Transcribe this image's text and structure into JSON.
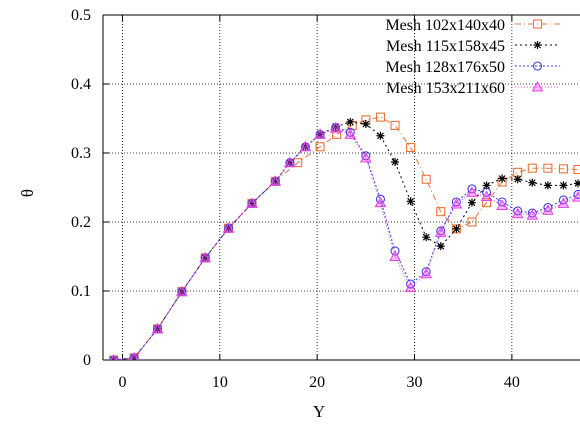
{
  "chart_data": {
    "type": "line",
    "xlabel": "Y",
    "ylabel": "θ",
    "xlim": [
      -2,
      47
    ],
    "ylim": [
      0,
      0.5
    ],
    "grid": true,
    "legend_position": "top-right",
    "x_ticks": [
      0,
      10,
      20,
      30,
      40
    ],
    "y_ticks": [
      0,
      0.1,
      0.2,
      0.3,
      0.4,
      0.5
    ],
    "x_tick_labels": [
      "0",
      "10",
      "20",
      "30",
      "40"
    ],
    "y_tick_labels": [
      "0",
      "0.1",
      "0.2",
      "0.3",
      "0.4",
      "0.5"
    ],
    "series": [
      {
        "name": "Mesh 102x140x40",
        "color": "#e8743b",
        "marker": "square",
        "dash": "6,3,1,3",
        "x": [
          -0.9,
          1.2,
          3.6,
          6.1,
          8.5,
          10.9,
          13.3,
          15.7,
          18.0,
          20.3,
          22.0,
          23.6,
          25.0,
          26.5,
          28.0,
          29.6,
          31.2,
          32.7,
          34.3,
          35.9,
          37.4,
          39.0,
          40.6,
          42.1,
          43.7,
          45.3,
          46.8,
          47.6
        ],
        "y": [
          0.0,
          0.003,
          0.045,
          0.099,
          0.148,
          0.191,
          0.227,
          0.259,
          0.286,
          0.309,
          0.327,
          0.34,
          0.348,
          0.352,
          0.34,
          0.308,
          0.262,
          0.215,
          0.19,
          0.2,
          0.228,
          0.258,
          0.272,
          0.278,
          0.278,
          0.277,
          0.276,
          0.277
        ]
      },
      {
        "name": "Mesh 115x158x45",
        "color": "#000000",
        "marker": "star",
        "dash": "2,3",
        "x": [
          -0.9,
          1.2,
          3.6,
          6.1,
          8.5,
          10.9,
          13.3,
          15.7,
          17.2,
          18.8,
          20.3,
          21.9,
          23.4,
          25.0,
          26.5,
          28.0,
          29.6,
          31.2,
          32.7,
          34.3,
          35.9,
          37.4,
          39.0,
          40.6,
          42.1,
          43.7,
          45.3,
          46.8
        ],
        "y": [
          0.0,
          0.003,
          0.045,
          0.099,
          0.148,
          0.191,
          0.227,
          0.259,
          0.286,
          0.309,
          0.327,
          0.338,
          0.345,
          0.342,
          0.325,
          0.287,
          0.23,
          0.178,
          0.165,
          0.19,
          0.228,
          0.253,
          0.263,
          0.262,
          0.257,
          0.253,
          0.253,
          0.256
        ]
      },
      {
        "name": "Mesh 128x176x50",
        "color": "#3f3fdf",
        "marker": "circle",
        "dash": "2,2",
        "x": [
          -0.9,
          1.2,
          3.6,
          6.1,
          8.5,
          10.9,
          13.3,
          15.7,
          17.2,
          18.8,
          20.3,
          21.9,
          23.4,
          25.0,
          26.5,
          28.0,
          29.6,
          31.2,
          32.7,
          34.3,
          35.9,
          37.4,
          39.0,
          40.6,
          42.1,
          43.7,
          45.3,
          46.8
        ],
        "y": [
          0.0,
          0.003,
          0.045,
          0.099,
          0.148,
          0.191,
          0.227,
          0.259,
          0.286,
          0.309,
          0.327,
          0.337,
          0.33,
          0.296,
          0.233,
          0.158,
          0.11,
          0.128,
          0.187,
          0.229,
          0.248,
          0.243,
          0.229,
          0.216,
          0.213,
          0.221,
          0.232,
          0.24
        ]
      },
      {
        "name": "Mesh 153x211x60",
        "color": "#e83ee8",
        "marker": "triangle",
        "dash": "1,2",
        "x": [
          -0.9,
          1.2,
          3.6,
          6.1,
          8.5,
          10.9,
          13.3,
          15.7,
          17.2,
          18.8,
          20.3,
          21.9,
          23.4,
          25.0,
          26.5,
          28.0,
          29.6,
          31.2,
          32.7,
          34.3,
          35.9,
          37.4,
          39.0,
          40.6,
          42.1,
          43.7,
          45.3,
          46.8
        ],
        "y": [
          0.0,
          0.003,
          0.045,
          0.099,
          0.148,
          0.191,
          0.227,
          0.259,
          0.286,
          0.309,
          0.327,
          0.336,
          0.327,
          0.293,
          0.228,
          0.15,
          0.105,
          0.125,
          0.185,
          0.226,
          0.243,
          0.237,
          0.224,
          0.212,
          0.21,
          0.217,
          0.227,
          0.236
        ]
      }
    ]
  }
}
